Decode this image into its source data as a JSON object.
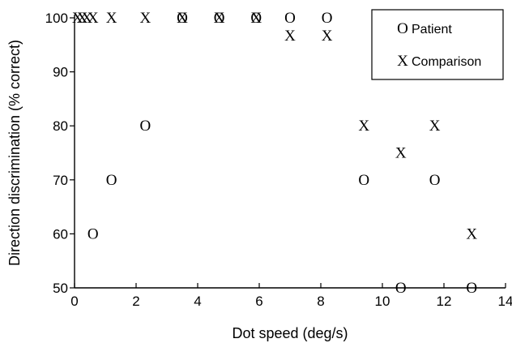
{
  "chart_data": {
    "type": "scatter",
    "xlabel": "Dot speed (deg/s)",
    "ylabel": "Direction discrimination (% correct)",
    "xlim": [
      0,
      14
    ],
    "ylim": [
      50,
      100
    ],
    "xticks": [
      "0",
      "2",
      "4",
      "6",
      "8",
      "10",
      "12",
      "14"
    ],
    "yticks": [
      "50",
      "60",
      "70",
      "80",
      "90",
      "100"
    ],
    "legend_position": "top-right",
    "grid": false,
    "series": [
      {
        "name": "Patient",
        "marker": "O",
        "points": [
          {
            "x": 0.6,
            "y": 60
          },
          {
            "x": 1.2,
            "y": 70
          },
          {
            "x": 2.3,
            "y": 80
          },
          {
            "x": 3.5,
            "y": 100
          },
          {
            "x": 4.7,
            "y": 100
          },
          {
            "x": 5.9,
            "y": 100
          },
          {
            "x": 7.0,
            "y": 100
          },
          {
            "x": 8.2,
            "y": 100
          },
          {
            "x": 9.4,
            "y": 70
          },
          {
            "x": 10.6,
            "y": 50
          },
          {
            "x": 11.7,
            "y": 70
          },
          {
            "x": 12.9,
            "y": 50
          }
        ]
      },
      {
        "name": "Comparison",
        "marker": "X",
        "points": [
          {
            "x": 0.1,
            "y": 100
          },
          {
            "x": 0.25,
            "y": 100
          },
          {
            "x": 0.4,
            "y": 100
          },
          {
            "x": 0.6,
            "y": 100
          },
          {
            "x": 1.2,
            "y": 100
          },
          {
            "x": 2.3,
            "y": 100
          },
          {
            "x": 3.5,
            "y": 100
          },
          {
            "x": 4.7,
            "y": 100
          },
          {
            "x": 5.9,
            "y": 100
          },
          {
            "x": 7.0,
            "y": 96.7
          },
          {
            "x": 8.2,
            "y": 96.7
          },
          {
            "x": 9.4,
            "y": 80
          },
          {
            "x": 10.6,
            "y": 75
          },
          {
            "x": 11.7,
            "y": 80
          },
          {
            "x": 12.9,
            "y": 60
          }
        ]
      }
    ]
  }
}
